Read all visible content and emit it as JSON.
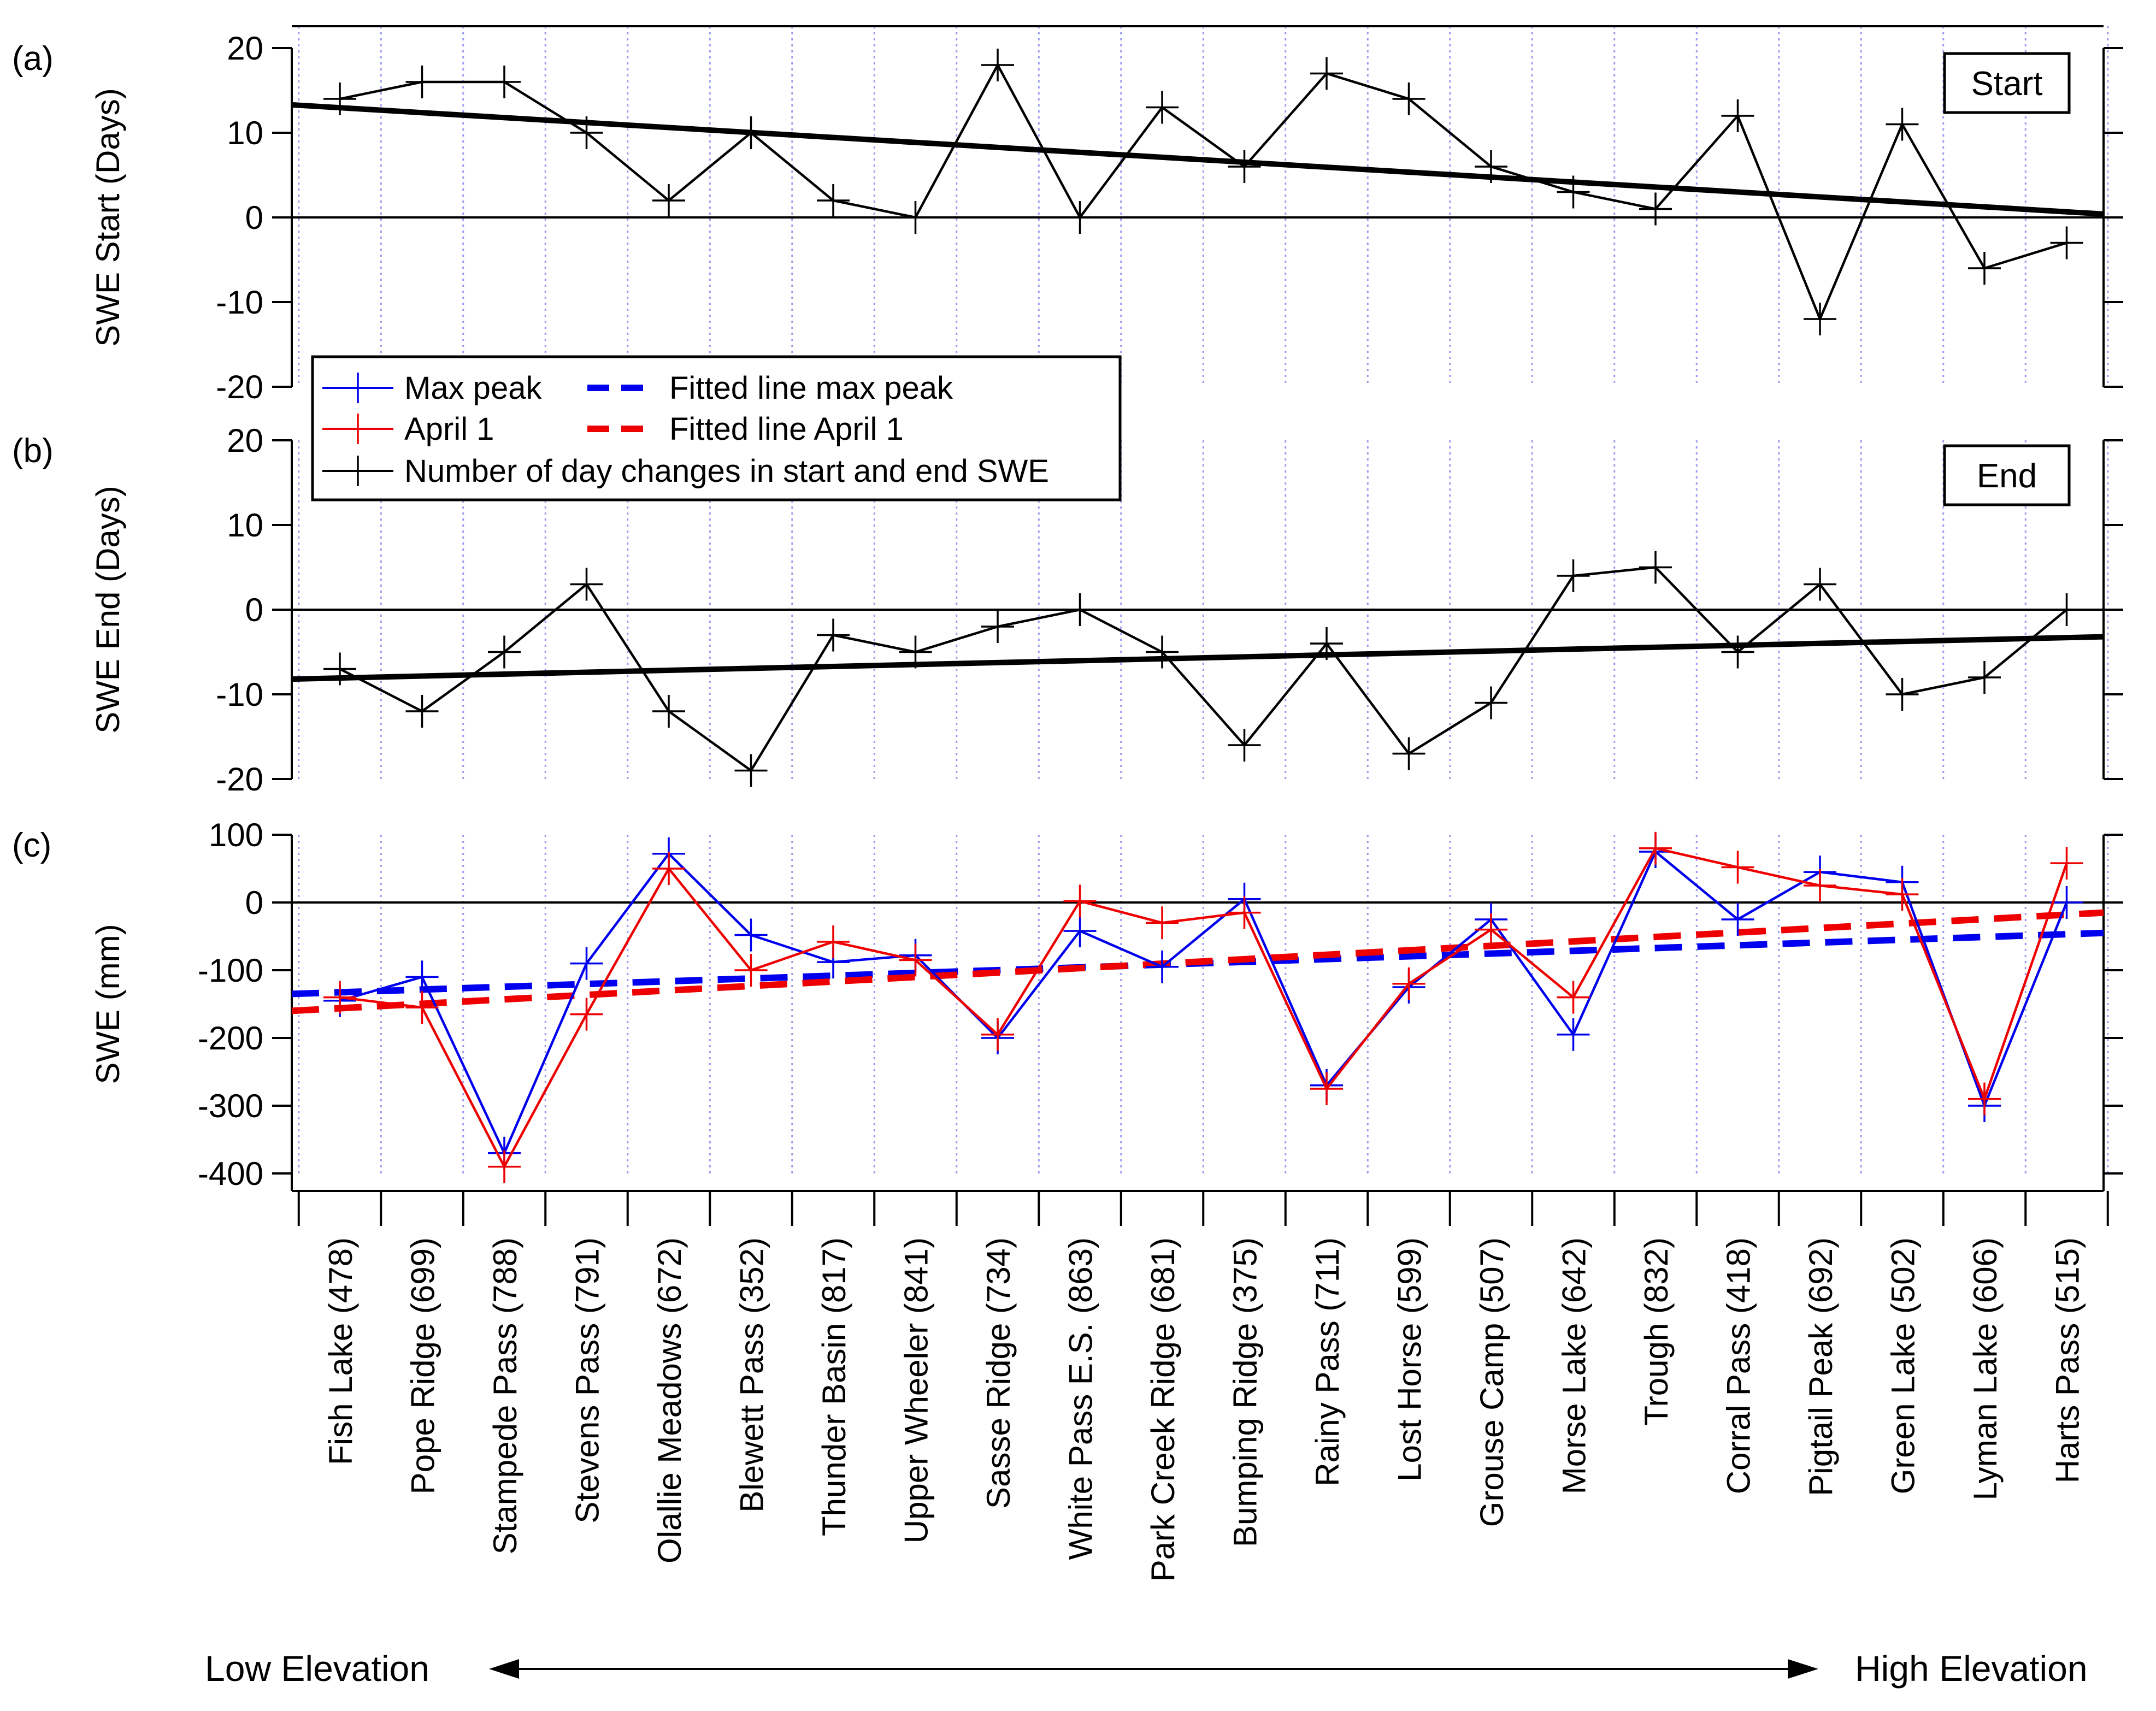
{
  "chart_data": {
    "type": "line",
    "categories": [
      "Fish Lake (478)",
      "Pope Ridge (699)",
      "Stampede Pass (788)",
      "Stevens Pass (791)",
      "Olallie Meadows (672)",
      "Blewett Pass (352)",
      "Thunder Basin (817)",
      "Upper Wheeler (841)",
      "Sasse Ridge (734)",
      "White Pass E.S. (863)",
      "Park Creek Ridge (681)",
      "Bumping Ridge (375)",
      "Rainy Pass (711)",
      "Lost Horse (599)",
      "Grouse Camp (507)",
      "Morse Lake (642)",
      "Trough (832)",
      "Corral Pass (418)",
      "Pigtail Peak (692)",
      "Green Lake (502)",
      "Lyman Lake (606)",
      "Harts Pass (515)"
    ],
    "elevation_axis": {
      "low": "Low Elevation",
      "high": "High Elevation"
    },
    "legend": [
      {
        "label": "Max peak",
        "color": "#0000ee",
        "style": "line-cross"
      },
      {
        "label": "Fitted line max peak",
        "color": "#0000ee",
        "style": "dashed"
      },
      {
        "label": "April 1",
        "color": "#ee0000",
        "style": "line-cross"
      },
      {
        "label": "Fitted line April 1",
        "color": "#ee0000",
        "style": "dashed"
      },
      {
        "label": "Number of day changes in start and end SWE",
        "color": "#000000",
        "style": "line-cross"
      }
    ],
    "panels": [
      {
        "id": "a",
        "panel_label": "(a)",
        "box_label": "Start",
        "ylabel": "SWE Start (Days)",
        "ylim": [
          -20,
          20
        ],
        "yticks": [
          "20",
          "10",
          "0",
          "-10",
          "-20"
        ],
        "ytick_values": [
          20,
          10,
          0,
          -10,
          -20
        ],
        "series": [
          {
            "name": "Number of day changes in start and end SWE",
            "color": "#000000",
            "values": [
              14,
              16,
              16,
              10,
              2,
              10,
              2,
              0,
              18,
              0,
              13,
              6,
              17,
              14,
              6,
              3,
              1,
              12,
              -12,
              11,
              -6,
              -3
            ]
          }
        ],
        "fits": [
          {
            "name": "Fitted line",
            "color": "#000000",
            "style": "solid",
            "y_start": 13.3,
            "y_end": 0.4
          }
        ]
      },
      {
        "id": "b",
        "panel_label": "(b)",
        "box_label": "End",
        "ylabel": "SWE End (Days)",
        "ylim": [
          -20,
          20
        ],
        "yticks": [
          "20",
          "10",
          "0",
          "-10",
          "-20"
        ],
        "ytick_values": [
          20,
          10,
          0,
          -10,
          -20
        ],
        "series": [
          {
            "name": "Number of day changes in start and end SWE",
            "color": "#000000",
            "values": [
              -7,
              -12,
              -5,
              3,
              -12,
              -19,
              -3,
              -5,
              -2,
              0,
              -5,
              -16,
              -4,
              -17,
              -11,
              4,
              5,
              -5,
              3,
              -10,
              -8,
              0
            ]
          }
        ],
        "fits": [
          {
            "name": "Fitted line",
            "color": "#000000",
            "style": "solid",
            "y_start": -8.2,
            "y_end": -3.2
          }
        ]
      },
      {
        "id": "c",
        "panel_label": "(c)",
        "box_label": "",
        "ylabel": "SWE (mm)",
        "ylim": [
          -400,
          100
        ],
        "yticks": [
          "100",
          "0",
          "-100",
          "-200",
          "-300",
          "-400"
        ],
        "ytick_values": [
          100,
          0,
          -100,
          -200,
          -300,
          -400
        ],
        "series": [
          {
            "name": "Max peak",
            "color": "#0000ee",
            "values": [
              -145,
              -110,
              -370,
              -90,
              72,
              -48,
              -88,
              -78,
              -200,
              -42,
              -95,
              5,
              -270,
              -125,
              -25,
              -195,
              75,
              -25,
              45,
              30,
              -300,
              0
            ]
          },
          {
            "name": "April 1",
            "color": "#ee0000",
            "values": [
              -140,
              -155,
              -390,
              -165,
              50,
              -100,
              -58,
              -85,
              -195,
              2,
              -30,
              -15,
              -275,
              -120,
              -40,
              -140,
              80,
              52,
              25,
              12,
              -290,
              58
            ]
          }
        ],
        "fits": [
          {
            "name": "Fitted line max peak",
            "color": "#0000ee",
            "style": "dashed",
            "y_start": -135,
            "y_end": -45
          },
          {
            "name": "Fitted line April 1",
            "color": "#ee0000",
            "style": "dashed",
            "y_start": -160,
            "y_end": -15
          }
        ]
      }
    ]
  }
}
